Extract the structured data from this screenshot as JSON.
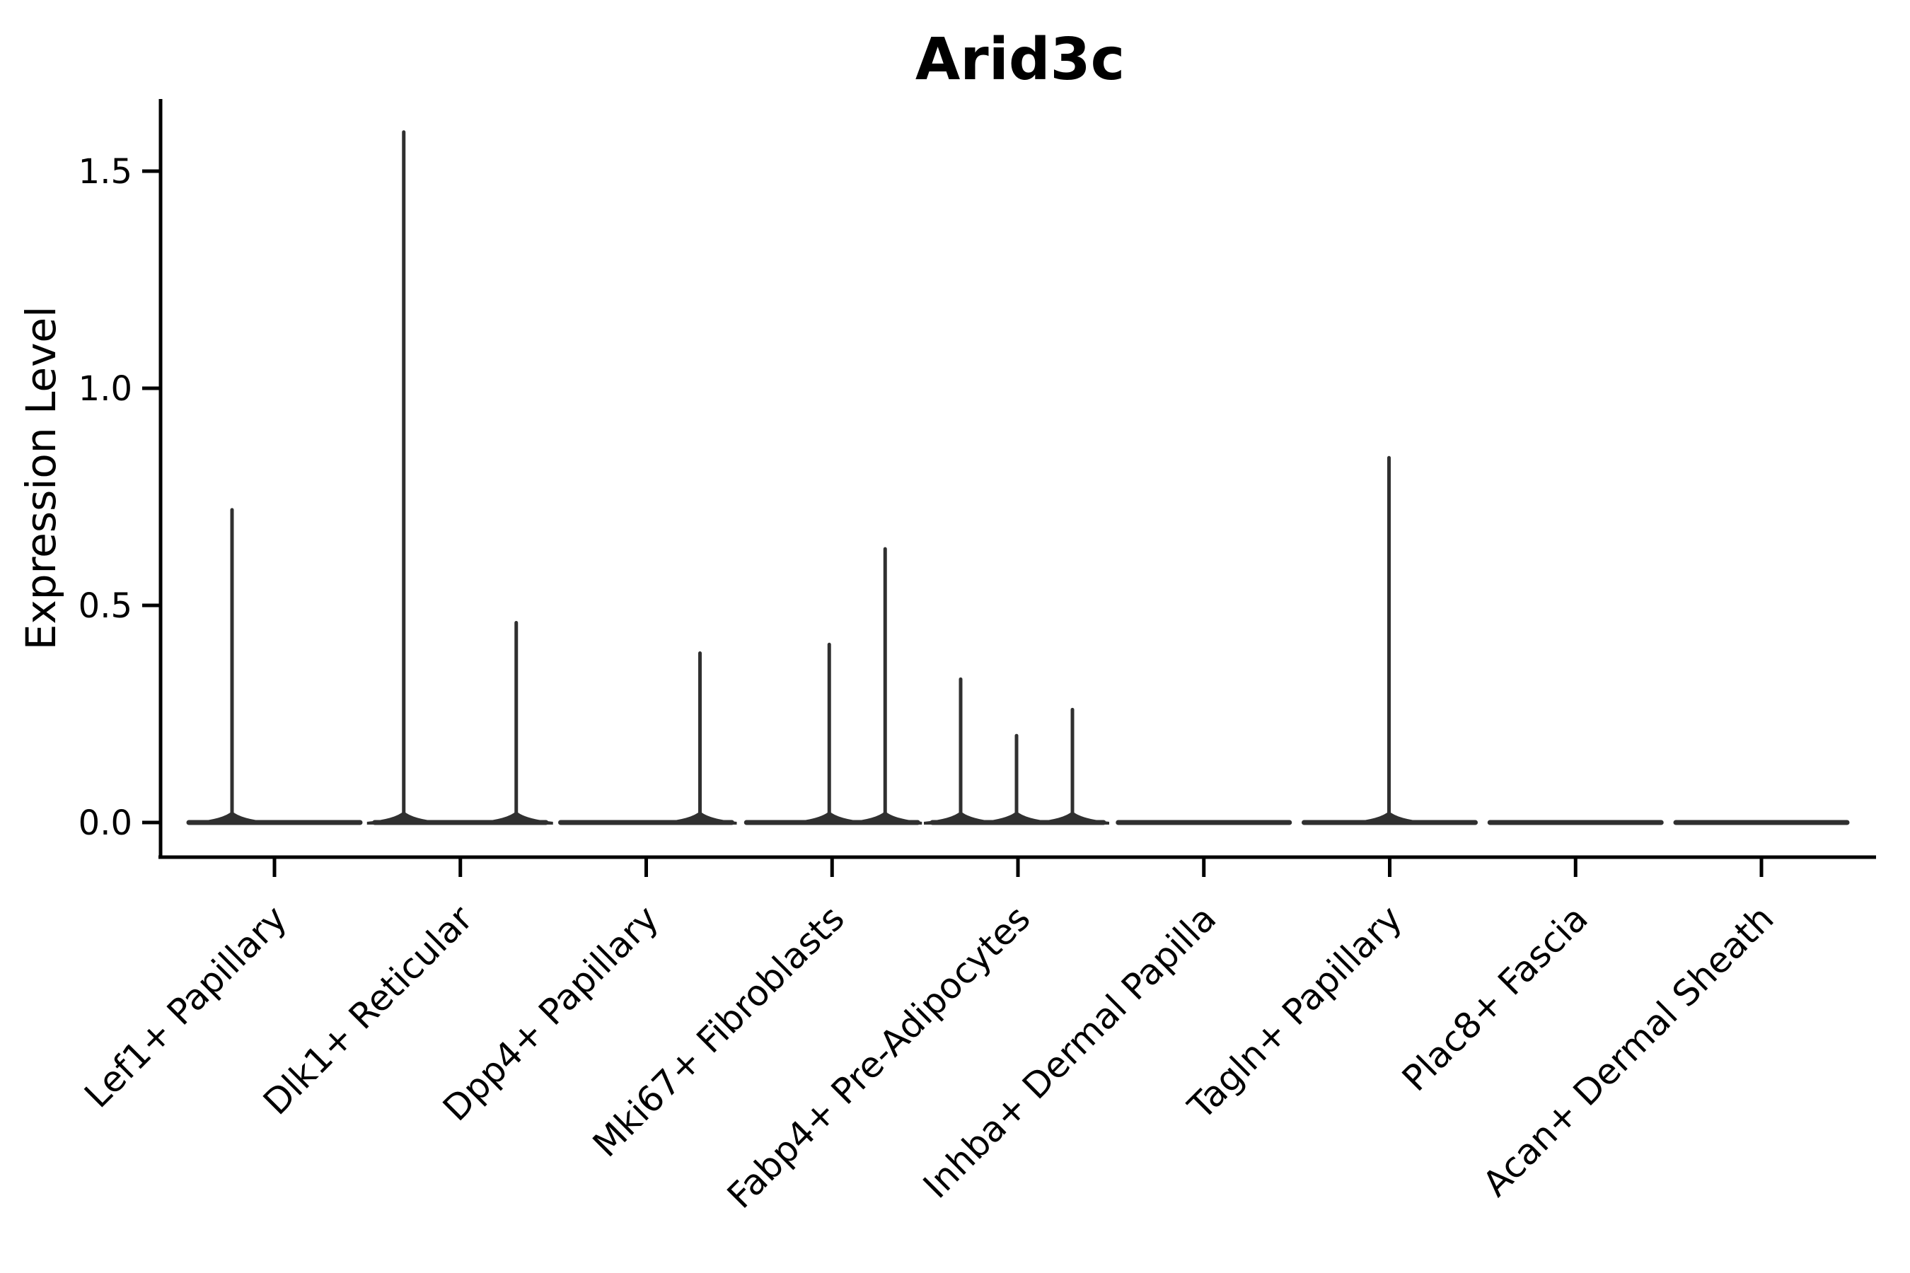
{
  "chart_data": {
    "type": "violin",
    "title": "Arid3c",
    "xlabel": "",
    "ylabel": "Expression Level",
    "ylim": [
      -0.08,
      1.67
    ],
    "grid": false,
    "legend": null,
    "violin_color": "#303030",
    "axis_color": "#000000",
    "x_label_rotation_deg": 45,
    "yticks": [
      {
        "label": "0.0",
        "value": 0.0
      },
      {
        "label": "0.5",
        "value": 0.5
      },
      {
        "label": "1.0",
        "value": 1.0
      },
      {
        "label": "1.5",
        "value": 1.5
      }
    ],
    "categories": [
      {
        "label": "Lef1+ Papillary",
        "spikes": [
          {
            "dx": -60,
            "value": 0.72
          }
        ]
      },
      {
        "label": "Dlk1+ Reticular",
        "spikes": [
          {
            "dx": -80,
            "value": 1.59
          },
          {
            "dx": 79,
            "value": 0.46
          }
        ]
      },
      {
        "label": "Dpp4+ Papillary",
        "spikes": [
          {
            "dx": 76,
            "value": 0.39
          }
        ]
      },
      {
        "label": "Mki67+ Fibroblasts",
        "spikes": [
          {
            "dx": -4,
            "value": 0.41
          },
          {
            "dx": 75,
            "value": 0.63
          }
        ]
      },
      {
        "label": "Fabp4+ Pre-Adipocytes",
        "spikes": [
          {
            "dx": -81,
            "value": 0.33
          },
          {
            "dx": -2,
            "value": 0.2
          },
          {
            "dx": 77,
            "value": 0.26
          }
        ]
      },
      {
        "label": "Inhba+ Dermal Papilla",
        "spikes": []
      },
      {
        "label": "Tagln+ Papillary",
        "spikes": [
          {
            "dx": -1,
            "value": 0.84
          }
        ]
      },
      {
        "label": "Plac8+ Fascia",
        "spikes": []
      },
      {
        "label": "Acan+ Dermal Sheath",
        "spikes": []
      }
    ]
  }
}
